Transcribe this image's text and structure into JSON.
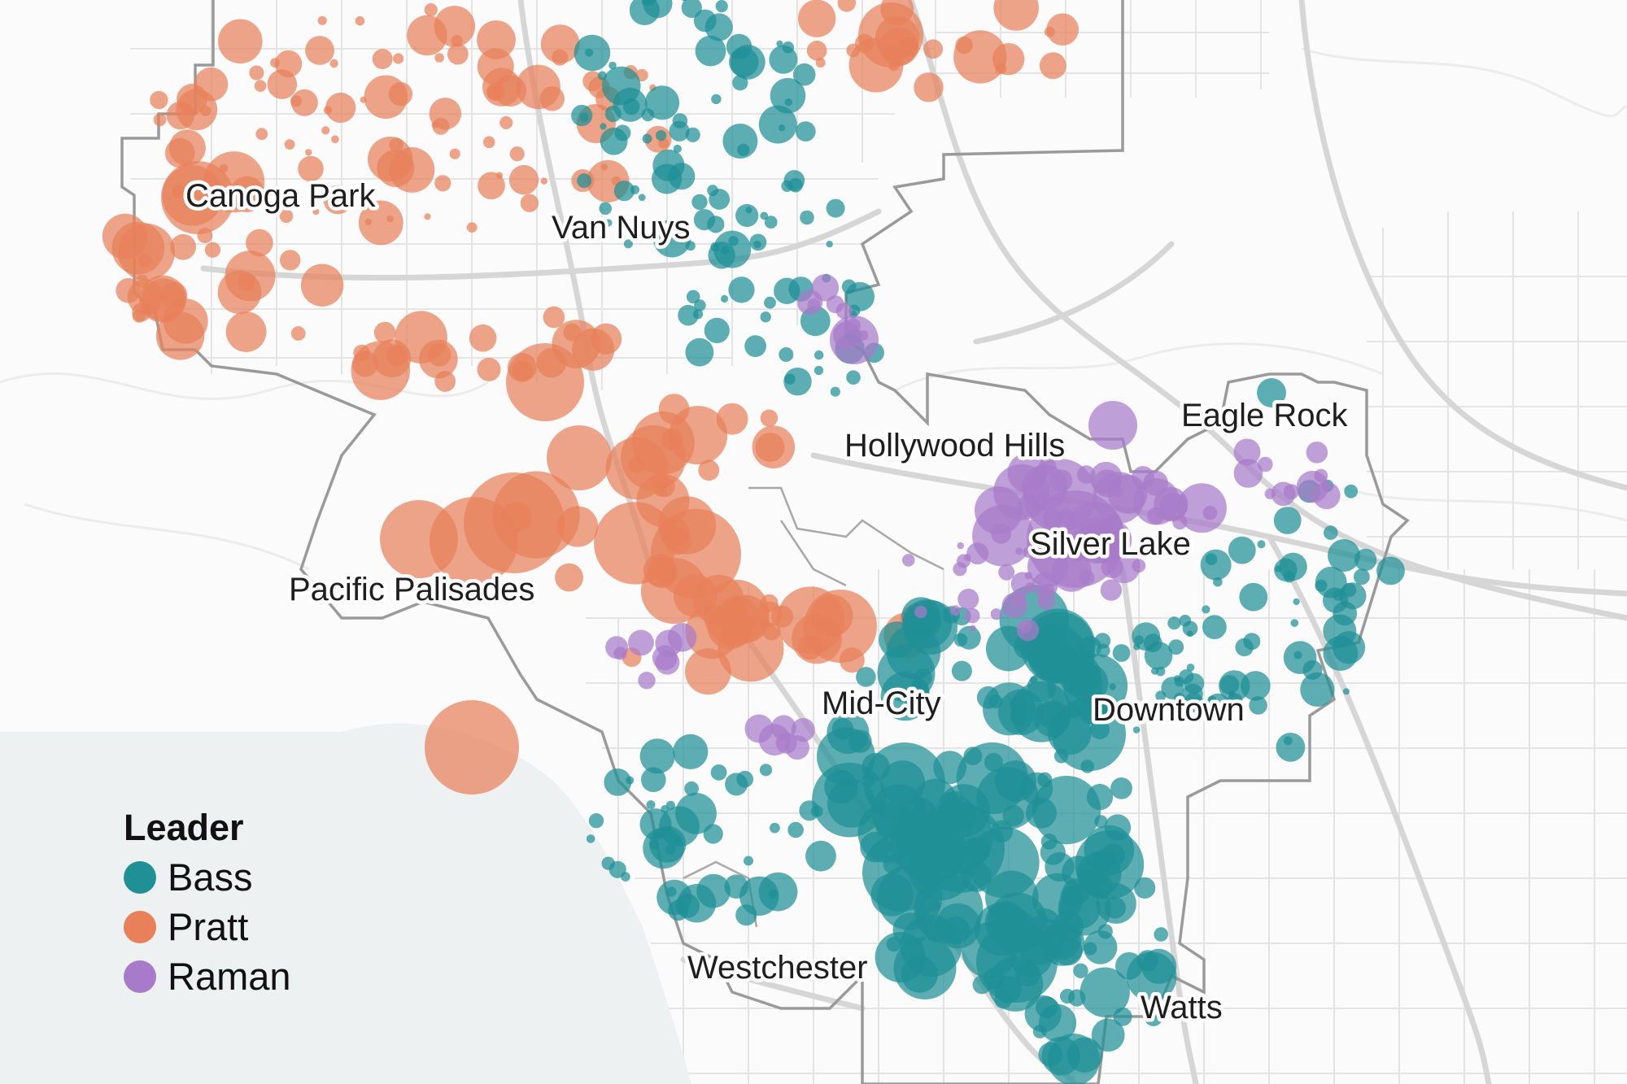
{
  "colors": {
    "background": "#fbfbfb",
    "ocean": "#eef1f2",
    "roads": "#d9d9d9",
    "city_boundary": "#9a9a9a"
  },
  "places": [
    {
      "id": "canoga-park",
      "label": "Canoga Park"
    },
    {
      "id": "van-nuys",
      "label": "Van Nuys"
    },
    {
      "id": "hollywood-hills",
      "label": "Hollywood Hills"
    },
    {
      "id": "eagle-rock",
      "label": "Eagle Rock"
    },
    {
      "id": "silver-lake",
      "label": "Silver Lake"
    },
    {
      "id": "pacific-palisades",
      "label": "Pacific Palisades"
    },
    {
      "id": "mid-city",
      "label": "Mid-City"
    },
    {
      "id": "downtown",
      "label": "Downtown"
    },
    {
      "id": "westchester",
      "label": "Westchester"
    },
    {
      "id": "watts",
      "label": "Watts"
    }
  ],
  "legend": {
    "title": "Leader",
    "items": [
      {
        "key": "bass",
        "label": "Bass",
        "color": "#1f9095"
      },
      {
        "key": "pratt",
        "label": "Pratt",
        "color": "#e8815a"
      },
      {
        "key": "raman",
        "label": "Raman",
        "color": "#a77bc9"
      }
    ]
  }
}
